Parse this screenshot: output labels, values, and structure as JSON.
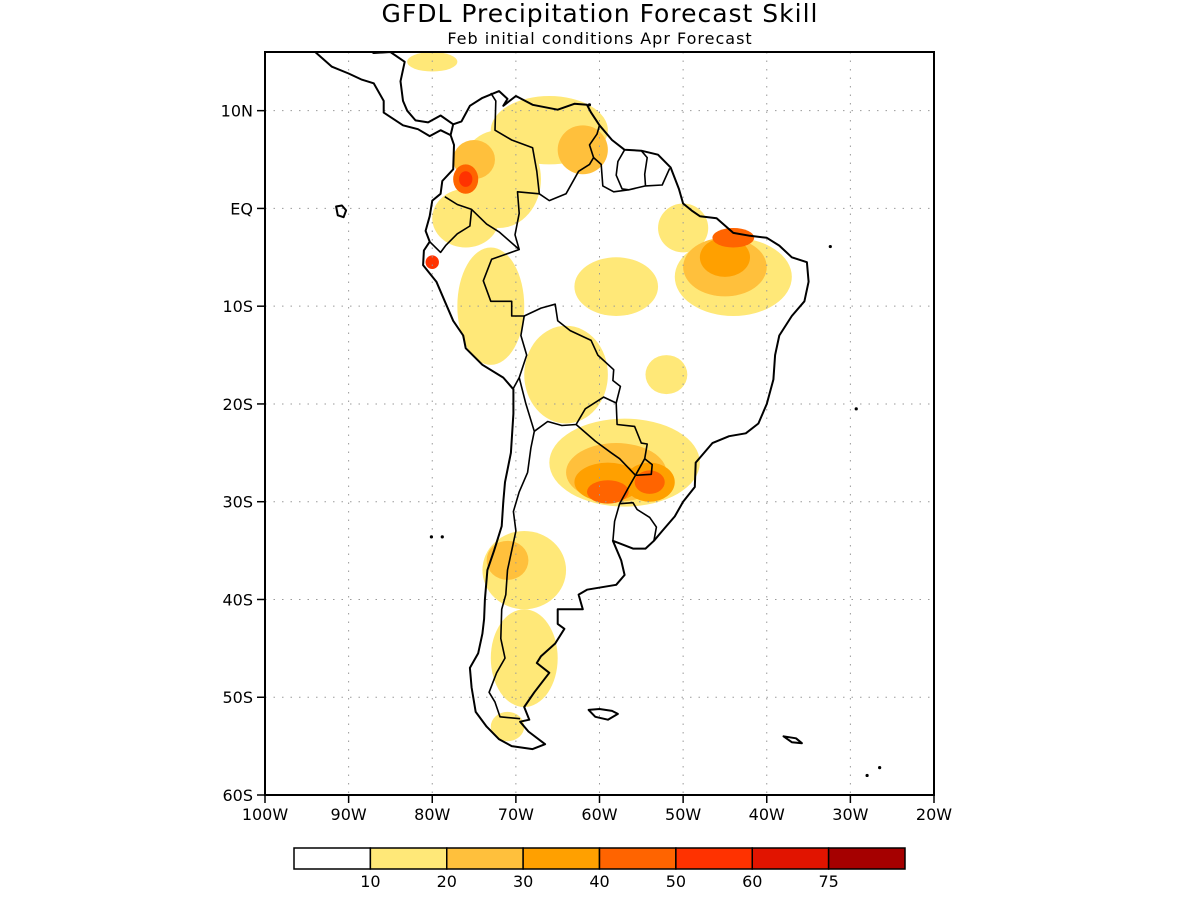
{
  "title": "GFDL Precipitation Forecast Skill",
  "subtitle": "Feb initial conditions  Apr Forecast",
  "map": {
    "projection": "latlon",
    "lon_range": [
      -100,
      -20
    ],
    "lat_range": [
      -60,
      16
    ],
    "lat_ticks": [
      {
        "value": 10,
        "label": "10N"
      },
      {
        "value": 0,
        "label": "EQ"
      },
      {
        "value": -10,
        "label": "10S"
      },
      {
        "value": -20,
        "label": "20S"
      },
      {
        "value": -30,
        "label": "30S"
      },
      {
        "value": -40,
        "label": "40S"
      },
      {
        "value": -50,
        "label": "50S"
      },
      {
        "value": -60,
        "label": "60S"
      }
    ],
    "lon_ticks": [
      {
        "value": -100,
        "label": "100W"
      },
      {
        "value": -90,
        "label": "90W"
      },
      {
        "value": -80,
        "label": "80W"
      },
      {
        "value": -70,
        "label": "70W"
      },
      {
        "value": -60,
        "label": "60W"
      },
      {
        "value": -50,
        "label": "50W"
      },
      {
        "value": -40,
        "label": "40W"
      },
      {
        "value": -30,
        "label": "30W"
      },
      {
        "value": -20,
        "label": "20W"
      }
    ],
    "grid": true,
    "region": "South America"
  },
  "colorbar": {
    "colors": [
      "#ffffff",
      "#ffe878",
      "#ffc03c",
      "#ffa000",
      "#ff6400",
      "#ff3200",
      "#e11400",
      "#a50000"
    ],
    "boundaries": [
      {
        "value": 10,
        "label": "10"
      },
      {
        "value": 20,
        "label": "20"
      },
      {
        "value": 30,
        "label": "30"
      },
      {
        "value": 40,
        "label": "40"
      },
      {
        "value": 50,
        "label": "50"
      },
      {
        "value": 60,
        "label": "60"
      },
      {
        "value": 75,
        "label": "75"
      }
    ]
  },
  "skill_regions": [
    {
      "level": 1,
      "lon": -66,
      "lat": 8,
      "rx": 7,
      "ry": 3.5
    },
    {
      "level": 1,
      "lon": -72,
      "lat": 3,
      "rx": 5,
      "ry": 5
    },
    {
      "level": 1,
      "lon": -76,
      "lat": -1,
      "rx": 4,
      "ry": 3
    },
    {
      "level": 1,
      "lon": -73,
      "lat": -10,
      "rx": 4,
      "ry": 6
    },
    {
      "level": 1,
      "lon": -64,
      "lat": -17,
      "rx": 5,
      "ry": 5
    },
    {
      "level": 1,
      "lon": -58,
      "lat": -8,
      "rx": 5,
      "ry": 3
    },
    {
      "level": 1,
      "lon": -50,
      "lat": -2,
      "rx": 3,
      "ry": 2.5
    },
    {
      "level": 1,
      "lon": -44,
      "lat": -7,
      "rx": 7,
      "ry": 4
    },
    {
      "level": 1,
      "lon": -52,
      "lat": -17,
      "rx": 2.5,
      "ry": 2
    },
    {
      "level": 1,
      "lon": -57,
      "lat": -26,
      "rx": 9,
      "ry": 4.5
    },
    {
      "level": 1,
      "lon": -69,
      "lat": -37,
      "rx": 5,
      "ry": 4
    },
    {
      "level": 1,
      "lon": -69,
      "lat": -46,
      "rx": 4,
      "ry": 5
    },
    {
      "level": 1,
      "lon": -71,
      "lat": -53,
      "rx": 2,
      "ry": 1.5
    },
    {
      "level": 1,
      "lon": -80,
      "lat": 15,
      "rx": 3,
      "ry": 1
    },
    {
      "level": 2,
      "lon": -62,
      "lat": 6,
      "rx": 3,
      "ry": 2.5
    },
    {
      "level": 2,
      "lon": -75,
      "lat": 5,
      "rx": 2.5,
      "ry": 2
    },
    {
      "level": 2,
      "lon": -45,
      "lat": -6,
      "rx": 5,
      "ry": 3
    },
    {
      "level": 2,
      "lon": -58,
      "lat": -27,
      "rx": 6,
      "ry": 3
    },
    {
      "level": 2,
      "lon": -71,
      "lat": -36,
      "rx": 2.5,
      "ry": 2
    },
    {
      "level": 3,
      "lon": -45,
      "lat": -5,
      "rx": 3,
      "ry": 2
    },
    {
      "level": 3,
      "lon": -59,
      "lat": -28,
      "rx": 4,
      "ry": 2
    },
    {
      "level": 3,
      "lon": -54,
      "lat": -28,
      "rx": 3,
      "ry": 2
    },
    {
      "level": 4,
      "lon": -76,
      "lat": 3,
      "rx": 1.5,
      "ry": 1.5
    },
    {
      "level": 4,
      "lon": -59,
      "lat": -29,
      "rx": 2.5,
      "ry": 1.2
    },
    {
      "level": 4,
      "lon": -54,
      "lat": -28,
      "rx": 1.8,
      "ry": 1.2
    },
    {
      "level": 4,
      "lon": -44,
      "lat": -3,
      "rx": 2.5,
      "ry": 1
    },
    {
      "level": 5,
      "lon": -80,
      "lat": -5.5,
      "rx": 0.8,
      "ry": 0.7
    },
    {
      "level": 5,
      "lon": -76,
      "lat": 3,
      "rx": 0.8,
      "ry": 0.8
    }
  ]
}
